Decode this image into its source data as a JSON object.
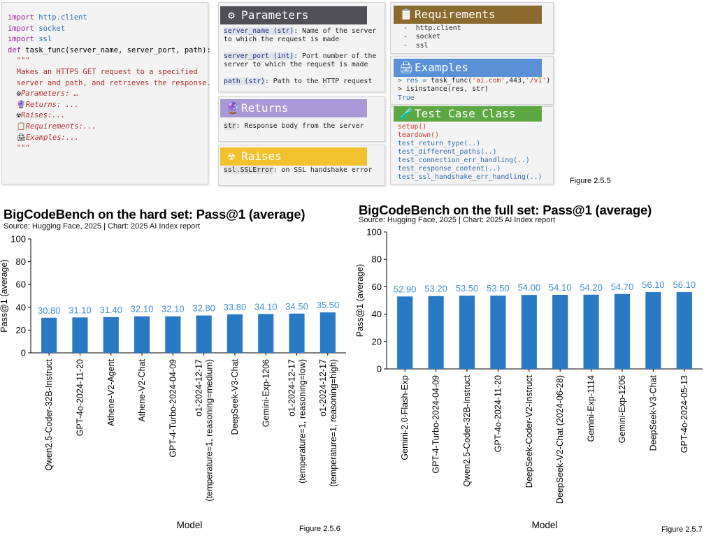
{
  "code_panel": {
    "lines": [
      [
        "import",
        " http.client"
      ],
      [
        "import",
        " socket"
      ],
      [
        "import",
        " ssl"
      ],
      [
        "",
        ""
      ],
      [
        "def",
        " task_func(server_name, server_port, path):"
      ],
      [
        "",
        "  \"\"\""
      ],
      [
        "",
        "  Makes an HTTPS GET request to a specified"
      ],
      [
        "",
        "  server and path, and retrieves the response."
      ],
      [
        "",
        "  Parameters: …"
      ],
      [
        "",
        ""
      ],
      [
        "",
        "  Returns: ..."
      ],
      [
        "",
        ""
      ],
      [
        "",
        "  Raises:..."
      ],
      [
        "",
        ""
      ],
      [
        "",
        "  Requirements:..."
      ],
      [
        "",
        ""
      ],
      [
        "",
        "  Examples:..."
      ],
      [
        "",
        "  \"\"\""
      ]
    ]
  },
  "parameters": {
    "title": "Parameters",
    "color": "#4f4f55",
    "p1_name": "server_name (str)",
    "p1_desc_a": ": Name of the server",
    "p1_desc_b": "to which the request is made",
    "p2_name": "server_port (int)",
    "p2_desc_a": ": Port number of the",
    "p2_desc_b": "server to which the request is made",
    "p3_name": "path (str)",
    "p3_desc": ": Path to the HTTP request"
  },
  "returns": {
    "title": "Returns",
    "color": "#a998d6",
    "name": "str",
    "desc": ": Response body from the server"
  },
  "raises": {
    "title": "Raises",
    "color": "#f2c22e",
    "name": "ssl.SSLError",
    "desc": ": on SSL handshake error"
  },
  "requirements": {
    "title": "Requirements",
    "color": "#8a6a2e",
    "items": [
      "-  http.client",
      "-  socket",
      "-  ssl"
    ]
  },
  "examples": {
    "title": "Examples",
    "color": "#5b8fd6",
    "l1_a": "> res = ",
    "l1_b": "task_func(",
    "l1_c": "'ai.com'",
    "l1_d": ",443,",
    "l1_e": "'/v1'",
    "l1_f": ")",
    "l2_a": "> isinstance(res, str)",
    "l3": "True"
  },
  "test_case": {
    "title": "Test Case Class",
    "color": "#5ea843",
    "methods_red": [
      "setup()",
      "teardown()"
    ],
    "methods_blue": [
      "test_return_type(..)",
      "test_different_paths(..)",
      "test_connection_err_handling(..)",
      "test_response_content(..)",
      "test_ssl_handshake_err_handling(..)"
    ]
  },
  "figure_labels": {
    "top": "Figure 2.5.5",
    "left": "Figure 2.5.6",
    "right": "Figure 2.5.7"
  },
  "chart_data": [
    {
      "type": "bar",
      "title": "BigCodeBench on the hard set: Pass@1 (average)",
      "subtitle": "Source: Hugging Face, 2025 | Chart: 2025 AI Index report",
      "xlabel": "Model",
      "ylabel": "Pass@1 (average)",
      "ylim": [
        0,
        100
      ],
      "yticks": [
        0,
        20,
        40,
        60,
        80,
        100
      ],
      "bar_color": "#2a79c4",
      "label_color": "#3f8fd1",
      "categories": [
        "Qwen2.5-Coder-32B-Instruct",
        "GPT-4o-2024-11-20",
        "Athene-V2-Agent",
        "Athene-V2-Chat",
        "GPT-4-Turbo-2024-04-09",
        "o1-2024-12-17\n(temperature=1, reasoning=medium)",
        "DeepSeek-V3-Chat",
        "Gemini-Exp-1206",
        "o1-2024-12-17\n(temperature=1, reasoning=low)",
        "o1-2024-12-17\n(temperature=1, reasoning=high)"
      ],
      "values": [
        30.8,
        31.1,
        31.4,
        32.1,
        32.1,
        32.8,
        33.8,
        34.1,
        34.5,
        35.5
      ],
      "value_labels": [
        "30.80",
        "31.10",
        "31.40",
        "32.10",
        "32.10",
        "32.80",
        "33.80",
        "34.10",
        "34.50",
        "35.50"
      ]
    },
    {
      "type": "bar",
      "title": "BigCodeBench on the full set: Pass@1 (average)",
      "subtitle": "Source: Hugging Face, 2025 | Chart: 2025 AI Index report",
      "xlabel": "Model",
      "ylabel": "Pass@1 (average)",
      "ylim": [
        0,
        100
      ],
      "yticks": [
        0,
        20,
        40,
        60,
        80,
        100
      ],
      "bar_color": "#2a79c4",
      "label_color": "#3f8fd1",
      "categories": [
        "Gemini-2.0-Flash-Exp",
        "GPT-4-Turbo-2024-04-09",
        "Qwen2.5-Coder-32B-Instruct",
        "GPT-4o-2024-11-20",
        "DeepSeek-Coder-V2-Instruct",
        "DeepSeek-V2-Chat (2024-06-28)",
        "Gemini-Exp-1114",
        "Gemini-Exp-1206",
        "DeepSeek-V3-Chat",
        "GPT-4o-2024-05-13"
      ],
      "values": [
        52.9,
        53.2,
        53.5,
        53.5,
        54.0,
        54.1,
        54.2,
        54.7,
        56.1,
        56.1
      ],
      "value_labels": [
        "52.90",
        "53.20",
        "53.50",
        "53.50",
        "54.00",
        "54.10",
        "54.20",
        "54.70",
        "56.10",
        "56.10"
      ]
    }
  ]
}
